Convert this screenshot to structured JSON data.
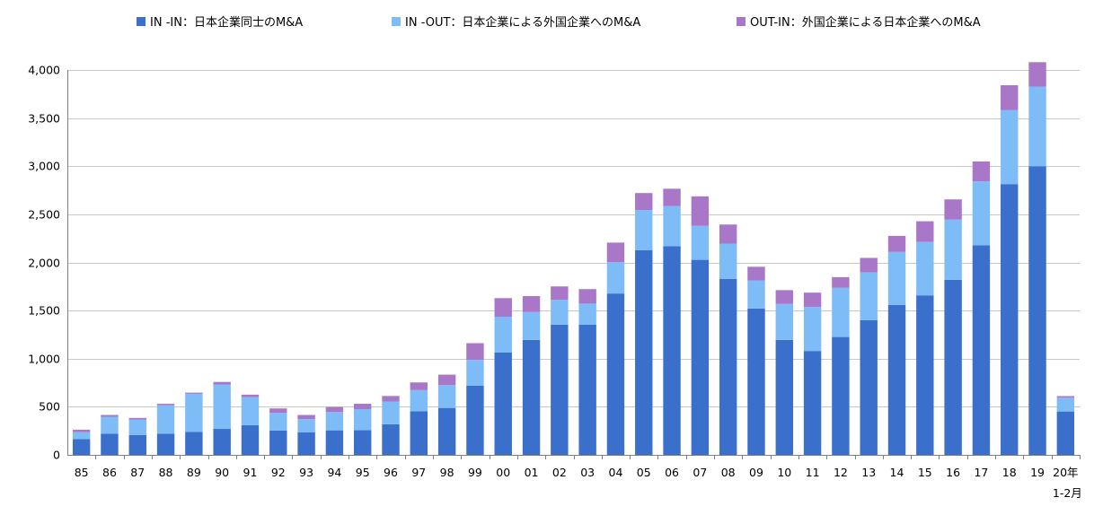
{
  "chart_data": {
    "type": "bar",
    "stacked": true,
    "categories": [
      "85",
      "86",
      "87",
      "88",
      "89",
      "90",
      "91",
      "92",
      "93",
      "94",
      "95",
      "96",
      "97",
      "98",
      "99",
      "00",
      "01",
      "02",
      "03",
      "04",
      "05",
      "06",
      "07",
      "08",
      "09",
      "10",
      "11",
      "12",
      "13",
      "14",
      "15",
      "16",
      "17",
      "18",
      "19",
      "20年"
    ],
    "x_sublabel": "1-2月",
    "series": [
      {
        "name": "IN -IN：日本企業同士のM&A",
        "color": "#3A6FCB",
        "values": [
          163,
          220,
          207,
          219,
          240,
          270,
          310,
          254,
          233,
          255,
          256,
          318,
          452,
          488,
          720,
          1063,
          1195,
          1353,
          1352,
          1677,
          2126,
          2169,
          2027,
          1830,
          1521,
          1195,
          1080,
          1225,
          1399,
          1559,
          1658,
          1819,
          2178,
          2814,
          3000,
          451
        ]
      },
      {
        "name": "IN -OUT：日本企業による外国企業へのM&A",
        "color": "#7EBCF7",
        "values": [
          73,
          175,
          161,
          297,
          395,
          462,
          290,
          182,
          139,
          190,
          219,
          237,
          221,
          237,
          267,
          373,
          290,
          259,
          220,
          325,
          419,
          416,
          353,
          366,
          292,
          374,
          457,
          511,
          499,
          550,
          555,
          626,
          665,
          771,
          826,
          143
        ]
      },
      {
        "name": "OUT-IN：外国企業による日本企業へのM&A",
        "color": "#A877C8",
        "values": [
          26,
          20,
          16,
          15,
          12,
          26,
          26,
          47,
          43,
          53,
          56,
          57,
          80,
          109,
          174,
          193,
          165,
          139,
          151,
          204,
          176,
          181,
          307,
          198,
          142,
          143,
          149,
          111,
          149,
          167,
          215,
          210,
          206,
          257,
          255,
          17
        ]
      }
    ],
    "ylim": [
      0,
      4000
    ],
    "yticks": [
      0,
      500,
      1000,
      1500,
      2000,
      2500,
      3000,
      3500,
      4000
    ],
    "ytick_labels": [
      "0",
      "500",
      "1,000",
      "1,500",
      "2,000",
      "2,500",
      "3,000",
      "3,500",
      "4,000"
    ],
    "title": "",
    "xlabel": "",
    "ylabel": "",
    "grid": true,
    "legend_position": "top"
  }
}
